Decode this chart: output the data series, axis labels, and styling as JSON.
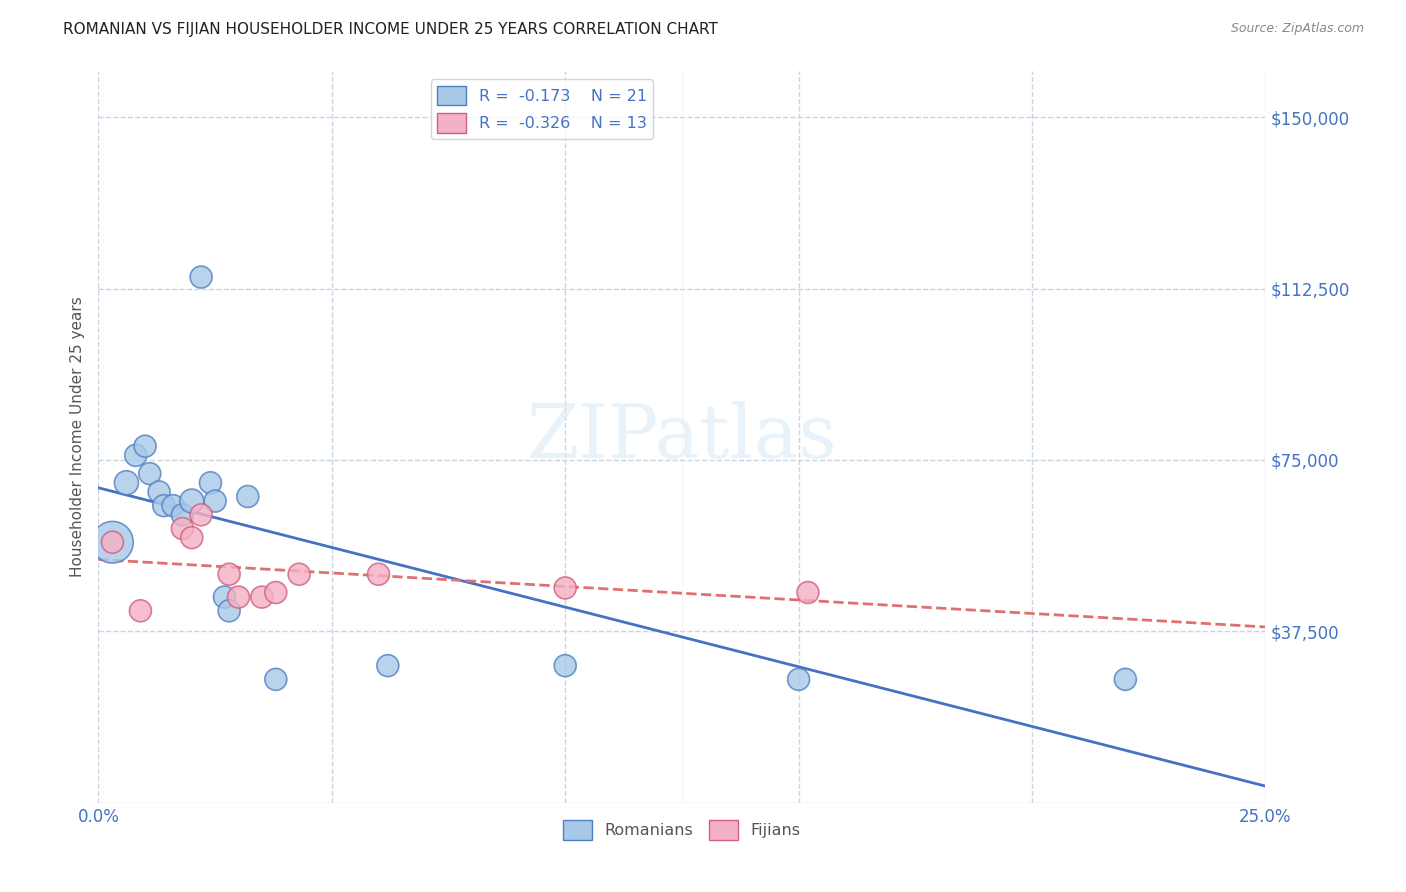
{
  "title": "ROMANIAN VS FIJIAN HOUSEHOLDER INCOME UNDER 25 YEARS CORRELATION CHART",
  "source": "Source: ZipAtlas.com",
  "ylabel": "Householder Income Under 25 years",
  "yticks": [
    0,
    37500,
    75000,
    112500,
    150000
  ],
  "ytick_labels": [
    "",
    "$37,500",
    "$75,000",
    "$112,500",
    "$150,000"
  ],
  "xlim": [
    0.0,
    0.25
  ],
  "ylim": [
    0,
    160000
  ],
  "romanian_color": "#a8c8e8",
  "fijian_color": "#f4b0c4",
  "romanian_edge_color": "#5080c0",
  "fijian_edge_color": "#d06080",
  "romanian_line_color": "#4472c4",
  "fijian_line_color": "#e07070",
  "romanian_x": [
    0.003,
    0.006,
    0.008,
    0.01,
    0.011,
    0.013,
    0.014,
    0.016,
    0.018,
    0.02,
    0.022,
    0.024,
    0.025,
    0.027,
    0.028,
    0.032,
    0.038,
    0.062,
    0.1,
    0.15,
    0.22
  ],
  "romanian_y": [
    57000,
    70000,
    76000,
    78000,
    72000,
    68000,
    65000,
    65000,
    63000,
    66000,
    115000,
    70000,
    66000,
    45000,
    42000,
    67000,
    27000,
    30000,
    30000,
    27000,
    27000
  ],
  "romanian_sizes": [
    900,
    300,
    250,
    250,
    250,
    250,
    250,
    250,
    250,
    300,
    250,
    250,
    250,
    250,
    250,
    250,
    250,
    250,
    250,
    250,
    250
  ],
  "fijian_x": [
    0.003,
    0.009,
    0.018,
    0.02,
    0.022,
    0.028,
    0.03,
    0.035,
    0.038,
    0.043,
    0.06,
    0.1,
    0.152
  ],
  "fijian_y": [
    57000,
    42000,
    60000,
    58000,
    63000,
    50000,
    45000,
    45000,
    46000,
    50000,
    50000,
    47000,
    46000
  ],
  "fijian_sizes": [
    250,
    250,
    250,
    250,
    250,
    250,
    250,
    250,
    250,
    250,
    250,
    250,
    250
  ],
  "background_color": "#ffffff",
  "grid_color": "#c8d4e4",
  "title_color": "#222222",
  "axis_label_color": "#4472c4",
  "source_color": "#888888",
  "ylabel_color": "#555555",
  "watermark_color": "#d8eaf8",
  "watermark_alpha": 0.6
}
